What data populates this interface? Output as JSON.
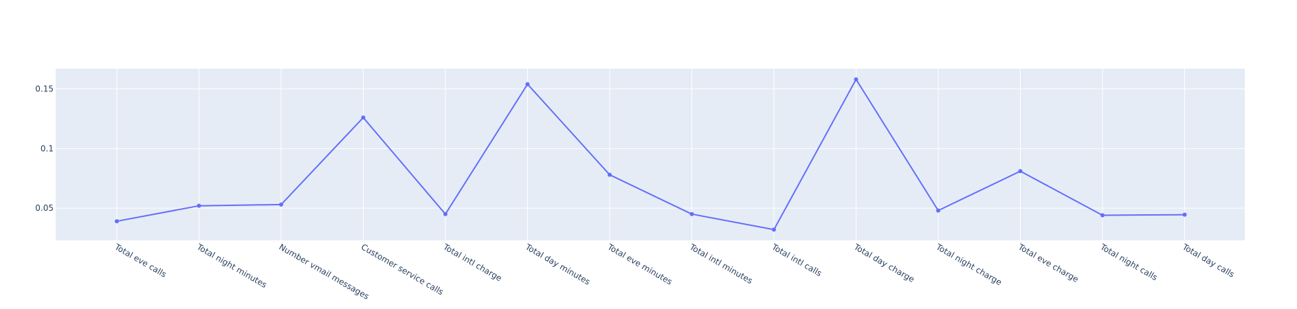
{
  "colors": {
    "plot_bg": "#E5ECF6",
    "grid": "#ffffff",
    "line": "#636EFA",
    "text": "#2a3f5f",
    "paper": "#ffffff"
  },
  "chart_data": {
    "type": "line",
    "mode": "lines+markers",
    "categories": [
      "Total eve calls",
      "Total night minutes",
      "Number vmail messages",
      "Customer service calls",
      "Total intl charge",
      "Total day minutes",
      "Total eve minutes",
      "Total intl minutes",
      "Total intl calls",
      "Total day charge",
      "Total night charge",
      "Total eve charge",
      "Total night calls",
      "Total day calls"
    ],
    "series": [
      {
        "values": [
          0.039,
          0.052,
          0.053,
          0.126,
          0.045,
          0.154,
          0.078,
          0.045,
          0.032,
          0.158,
          0.048,
          0.081,
          0.044,
          0.0445
        ]
      }
    ],
    "yticks": [
      0.05,
      0.1,
      0.15
    ],
    "ytick_labels": [
      "0.05",
      "0.1",
      "0.15"
    ],
    "ylim": [
      0.023,
      0.167
    ],
    "grid": true,
    "xtick_rotation": 30,
    "legend": "none"
  }
}
